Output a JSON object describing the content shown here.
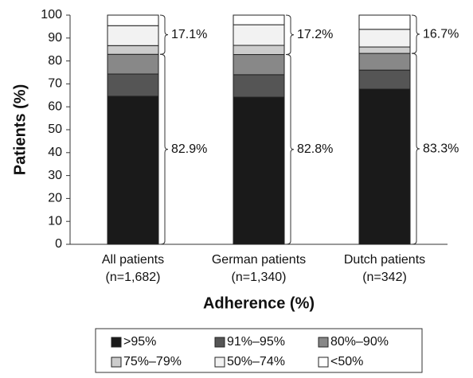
{
  "chart_data": {
    "type": "stacked_bar",
    "x_label": "Adherence (%)",
    "y_label": "Patients (%)",
    "categories": [
      [
        "All patients",
        "(n=1,682)"
      ],
      [
        "German patients",
        "(n=1,340)"
      ],
      [
        "Dutch patients",
        "(n=342)"
      ]
    ],
    "series": [
      {
        "name": ">95%",
        "color": "#1a1a1a",
        "values": [
          64.6,
          64.2,
          67.7
        ]
      },
      {
        "name": "91%–95%",
        "color": "#555555",
        "values": [
          9.7,
          9.8,
          8.3
        ]
      },
      {
        "name": "80%–90%",
        "color": "#888888",
        "values": [
          8.6,
          8.8,
          7.3
        ]
      },
      {
        "name": "75%–79%",
        "color": "#cccccc",
        "values": [
          3.8,
          4.0,
          2.8
        ]
      },
      {
        "name": "50%–74%",
        "color": "#f2f2f2",
        "values": [
          8.7,
          9.0,
          7.7
        ]
      },
      {
        "name": "<50%",
        "color": "#ffffff",
        "values": [
          4.6,
          4.2,
          6.2
        ]
      }
    ],
    "brackets": {
      "lower": {
        "values": [
          82.9,
          82.8,
          83.3
        ],
        "value_labels": [
          "82.9%",
          "82.8%",
          "83.3%"
        ]
      },
      "upper": {
        "values": [
          17.1,
          17.2,
          16.7
        ],
        "value_labels": [
          "17.1%",
          "17.2%",
          "16.7%"
        ]
      }
    },
    "ylim": [
      0,
      100
    ],
    "yticks": [
      0,
      10,
      20,
      30,
      40,
      50,
      60,
      70,
      80,
      90,
      100
    ],
    "legend": "bottom"
  }
}
